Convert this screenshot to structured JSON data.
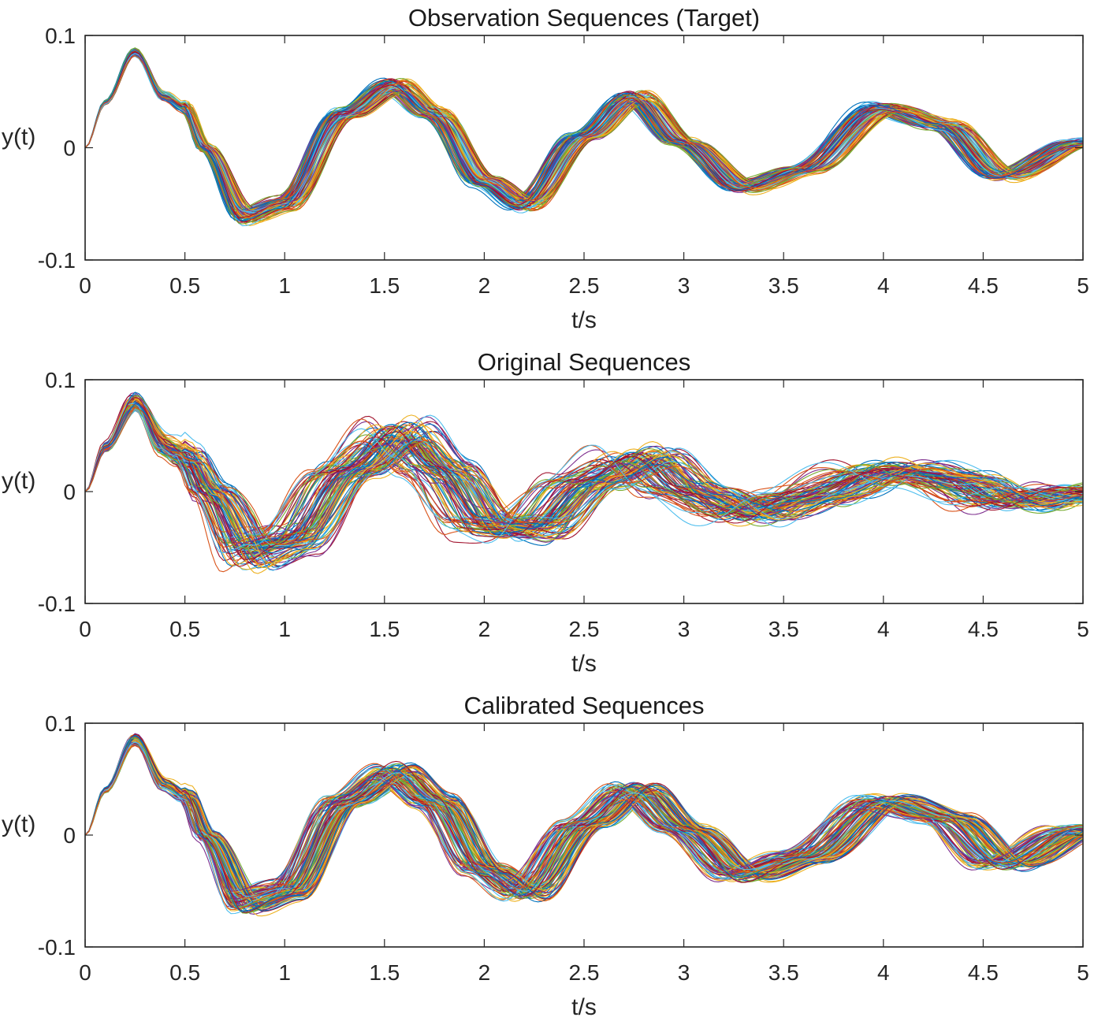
{
  "chart_data": [
    {
      "type": "line",
      "title": "Observation Sequences (Target)",
      "xlabel": "t/s",
      "ylabel": "y(t)",
      "xlim": [
        0,
        5
      ],
      "ylim": [
        -0.1,
        0.1
      ],
      "xticks": [
        "0",
        "0.5",
        "1",
        "1.5",
        "2",
        "2.5",
        "3",
        "3.5",
        "4",
        "4.5",
        "5"
      ],
      "yticks": [
        "0.1",
        "0",
        "-0.1"
      ],
      "grid": false,
      "series_count": 100,
      "representative_series": {
        "name": "",
        "x": [
          0,
          0.1,
          0.25,
          0.4,
          0.5,
          0.6,
          0.8,
          1.0,
          1.3,
          1.55,
          1.75,
          2.0,
          2.2,
          2.5,
          2.75,
          3.0,
          3.3,
          3.6,
          4.0,
          4.3,
          4.6,
          5.0
        ],
        "values": [
          0,
          0.04,
          0.085,
          0.045,
          0.035,
          0.0,
          -0.06,
          -0.05,
          0.03,
          0.055,
          0.03,
          -0.03,
          -0.05,
          0.01,
          0.045,
          0.005,
          -0.035,
          -0.02,
          0.035,
          0.02,
          -0.025,
          0.005
        ]
      }
    },
    {
      "type": "line",
      "title": "Original Sequences",
      "xlabel": "t/s",
      "ylabel": "y(t)",
      "xlim": [
        0,
        5
      ],
      "ylim": [
        -0.1,
        0.1
      ],
      "xticks": [
        "0",
        "0.5",
        "1",
        "1.5",
        "2",
        "2.5",
        "3",
        "3.5",
        "4",
        "4.5",
        "5"
      ],
      "yticks": [
        "0.1",
        "0",
        "-0.1"
      ],
      "grid": false,
      "series_count": 100,
      "representative_series": {
        "name": "",
        "x": [
          0,
          0.1,
          0.25,
          0.4,
          0.5,
          0.6,
          0.8,
          1.0,
          1.3,
          1.55,
          1.75,
          2.0,
          2.2,
          2.5,
          2.75,
          3.0,
          3.3,
          3.6,
          4.0,
          4.3,
          4.6,
          5.0
        ],
        "values": [
          0,
          0.04,
          0.08,
          0.04,
          0.03,
          0.0,
          -0.055,
          -0.045,
          0.02,
          0.05,
          0.02,
          -0.03,
          -0.035,
          0.01,
          0.03,
          0.0,
          -0.02,
          -0.005,
          0.02,
          0.01,
          -0.01,
          0.0
        ]
      }
    },
    {
      "type": "line",
      "title": "Calibrated Sequences",
      "xlabel": "t/s",
      "ylabel": "y(t)",
      "xlim": [
        0,
        5
      ],
      "ylim": [
        -0.1,
        0.1
      ],
      "xticks": [
        "0",
        "0.5",
        "1",
        "1.5",
        "2",
        "2.5",
        "3",
        "3.5",
        "4",
        "4.5",
        "5"
      ],
      "yticks": [
        "0.1",
        "0",
        "-0.1"
      ],
      "grid": false,
      "series_count": 100,
      "representative_series": {
        "name": "",
        "x": [
          0,
          0.1,
          0.25,
          0.4,
          0.5,
          0.6,
          0.8,
          1.0,
          1.3,
          1.55,
          1.75,
          2.0,
          2.2,
          2.5,
          2.75,
          3.0,
          3.3,
          3.6,
          4.0,
          4.3,
          4.6,
          5.0
        ],
        "values": [
          0,
          0.04,
          0.085,
          0.045,
          0.035,
          0.0,
          -0.06,
          -0.05,
          0.03,
          0.055,
          0.03,
          -0.03,
          -0.05,
          0.01,
          0.04,
          0.005,
          -0.035,
          -0.02,
          0.03,
          0.015,
          -0.025,
          0.005
        ]
      }
    }
  ],
  "series_colors": [
    "#0072BD",
    "#D95319",
    "#EDB120",
    "#7E2F8E",
    "#77AC30",
    "#4DBEEE",
    "#A2142F"
  ]
}
